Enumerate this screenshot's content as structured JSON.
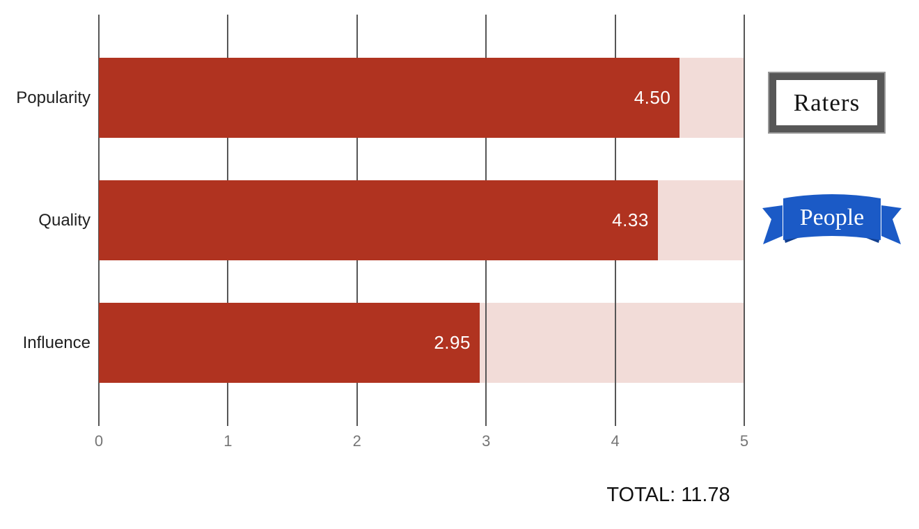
{
  "chart_data": {
    "type": "bar",
    "orientation": "horizontal",
    "title": "",
    "categories": [
      "Popularity",
      "Quality",
      "Influence"
    ],
    "values": [
      4.5,
      4.33,
      2.95
    ],
    "value_labels": [
      "4.50",
      "4.33",
      "2.95"
    ],
    "xlim": [
      0,
      5
    ],
    "x_ticks": [
      "0",
      "1",
      "2",
      "3",
      "4",
      "5"
    ],
    "grid": true,
    "bar_color": "#b03320",
    "track_color": "#f2dcd8",
    "gridline_color": "#565656",
    "total_label": "TOTAL: 11.78"
  },
  "annotations": {
    "raters_label": "Raters",
    "people_label": "People",
    "people_ribbon_color": "#1b5ac6",
    "people_ribbon_fold_color": "#123f8f",
    "raters_frame_color": "#575757"
  }
}
